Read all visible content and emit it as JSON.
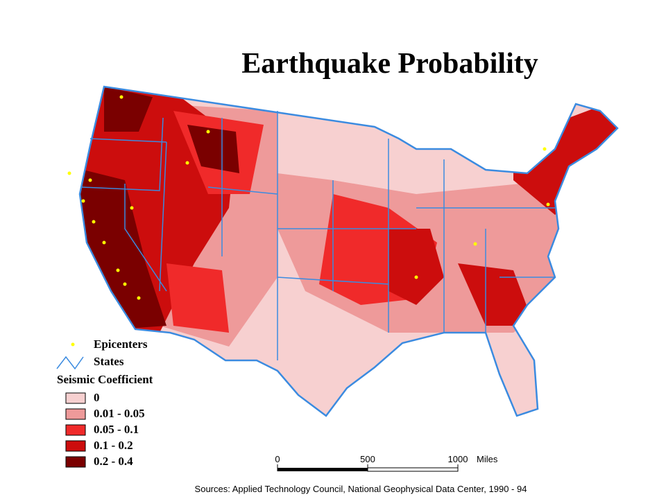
{
  "title": "Earthquake Probability",
  "legend": {
    "symbols": [
      {
        "label": "Epicenters",
        "color": "#ffff00"
      },
      {
        "label": "States",
        "color": "#3b8be0"
      }
    ],
    "heading": "Seismic Coefficient",
    "classes": [
      {
        "label": "0",
        "color": "#f7d0d0"
      },
      {
        "label": "0.01 - 0.05",
        "color": "#ee9a9a"
      },
      {
        "label": "0.05 - 0.1",
        "color": "#f02a2a"
      },
      {
        "label": "0.1 - 0.2",
        "color": "#cc0d0d"
      },
      {
        "label": "0.2 - 0.4",
        "color": "#7a0000"
      }
    ]
  },
  "scale_bar": {
    "ticks": [
      0,
      500,
      1000
    ],
    "unit": "Miles"
  },
  "source": "Sources: Applied Technology Council, National Geophysical Data Center, 1990 - 94"
}
